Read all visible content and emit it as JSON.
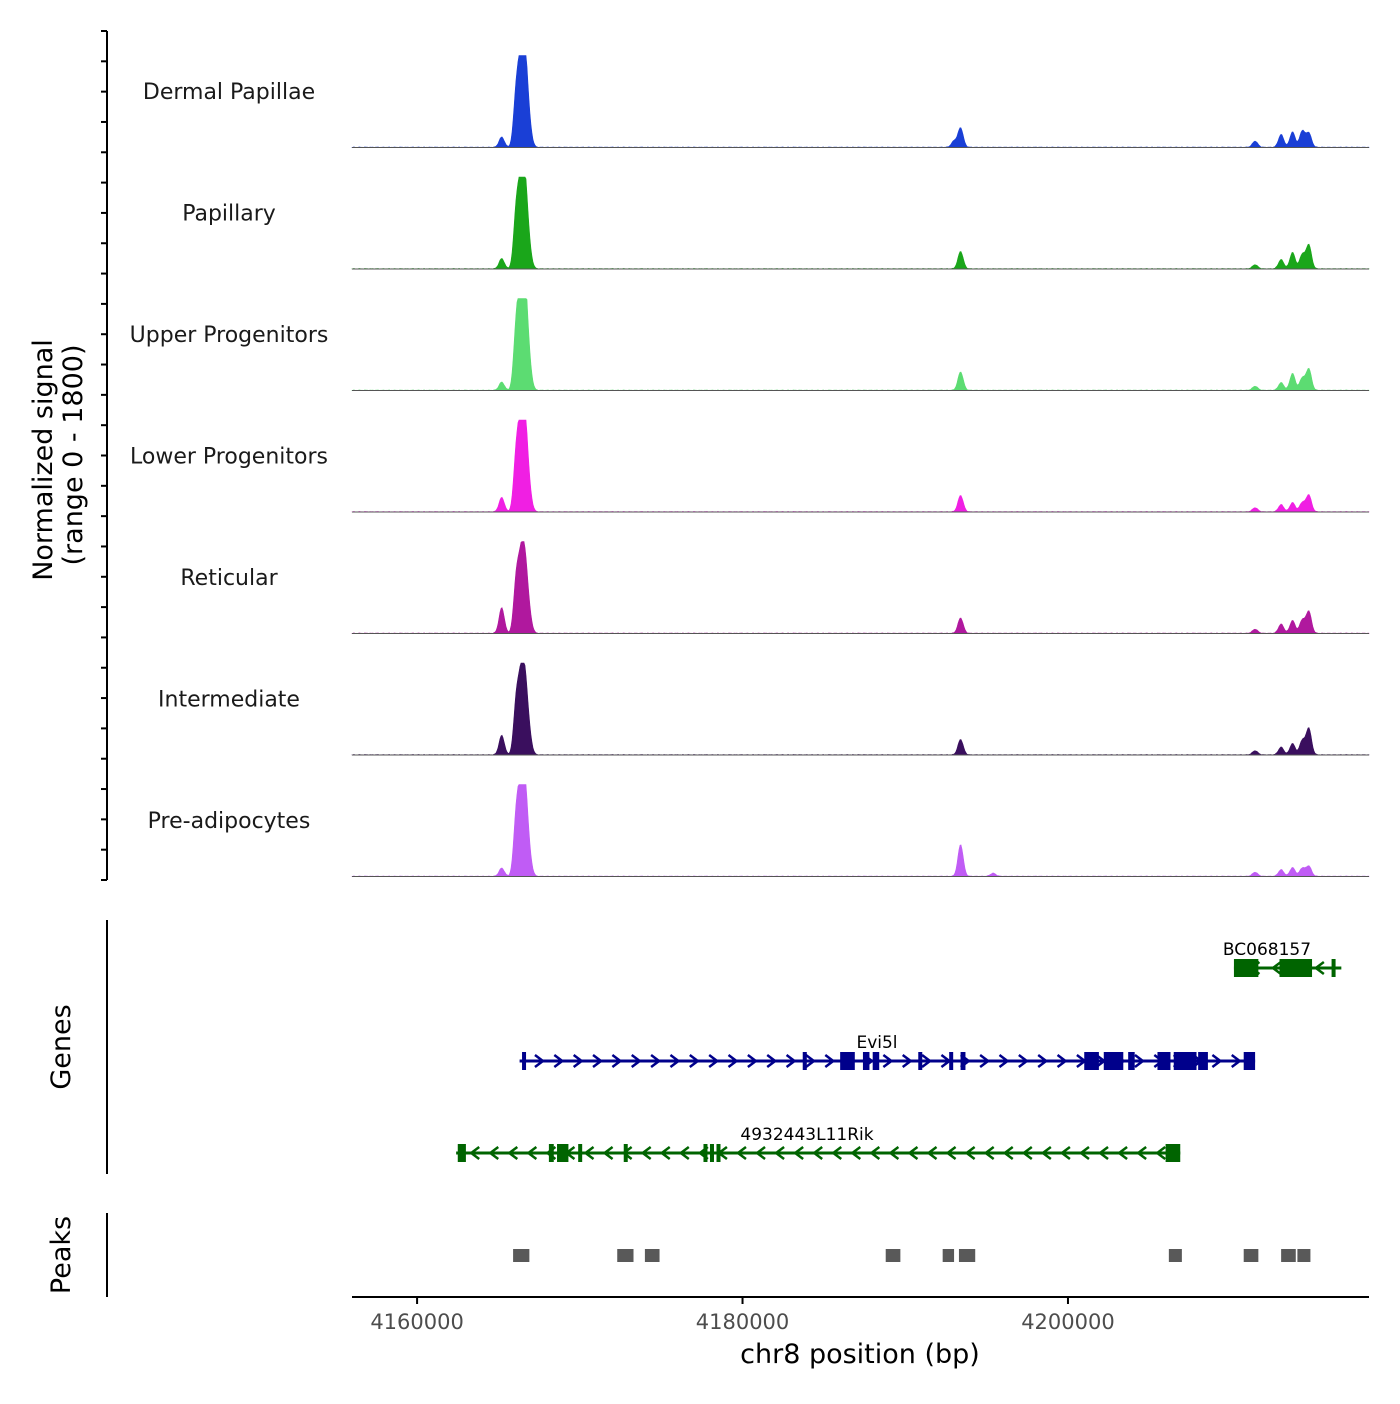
{
  "chart_data": {
    "type": "area",
    "title": "",
    "xlabel": "chr8 position (bp)",
    "ylabel_signal": "Normalized signal",
    "ylabel_signal_range": "(range 0 - 1800)",
    "ylim": [
      0,
      1800
    ],
    "xlim": [
      4156000,
      4218500
    ],
    "x_ticks": [
      4160000,
      4180000,
      4200000
    ],
    "x_tick_labels": [
      "4160000",
      "4180000",
      "4200000"
    ],
    "panel_labels": {
      "genes": "Genes",
      "peaks": "Peaks"
    },
    "tracks": [
      {
        "name": "Dermal Papillae",
        "color": "#1a3fd6",
        "peaks": [
          [
            4165200,
            200
          ],
          [
            4166100,
            1100
          ],
          [
            4166400,
            1550
          ],
          [
            4166650,
            1480
          ],
          [
            4166900,
            350
          ],
          [
            4193000,
            120
          ],
          [
            4193400,
            380
          ],
          [
            4211500,
            120
          ],
          [
            4213100,
            250
          ],
          [
            4213800,
            300
          ],
          [
            4214400,
            320
          ],
          [
            4214800,
            280
          ]
        ]
      },
      {
        "name": "Papillary",
        "color": "#1aa61a",
        "peaks": [
          [
            4165200,
            200
          ],
          [
            4166100,
            1150
          ],
          [
            4166400,
            1480
          ],
          [
            4166650,
            1380
          ],
          [
            4166900,
            300
          ],
          [
            4193400,
            340
          ],
          [
            4211500,
            80
          ],
          [
            4213100,
            180
          ],
          [
            4213800,
            320
          ],
          [
            4214400,
            280
          ],
          [
            4214800,
            470
          ]
        ]
      },
      {
        "name": "Upper Progenitors",
        "color": "#5cdc72",
        "peaks": [
          [
            4165200,
            160
          ],
          [
            4166100,
            1250
          ],
          [
            4166400,
            1800
          ],
          [
            4166650,
            1650
          ],
          [
            4166900,
            400
          ],
          [
            4193400,
            360
          ],
          [
            4211500,
            80
          ],
          [
            4213100,
            150
          ],
          [
            4213800,
            330
          ],
          [
            4214400,
            240
          ],
          [
            4214800,
            420
          ]
        ]
      },
      {
        "name": "Lower Progenitors",
        "color": "#f01fe3",
        "peaks": [
          [
            4165200,
            280
          ],
          [
            4166100,
            1150
          ],
          [
            4166400,
            1600
          ],
          [
            4166650,
            1450
          ],
          [
            4166900,
            330
          ],
          [
            4193400,
            320
          ],
          [
            4211500,
            80
          ],
          [
            4213100,
            140
          ],
          [
            4213800,
            180
          ],
          [
            4214400,
            180
          ],
          [
            4214800,
            330
          ]
        ]
      },
      {
        "name": "Reticular",
        "color": "#b0189e",
        "peaks": [
          [
            4165200,
            500
          ],
          [
            4166100,
            1050
          ],
          [
            4166400,
            1250
          ],
          [
            4166650,
            1150
          ],
          [
            4166900,
            300
          ],
          [
            4193400,
            300
          ],
          [
            4211500,
            80
          ],
          [
            4213100,
            180
          ],
          [
            4213800,
            250
          ],
          [
            4214400,
            260
          ],
          [
            4214800,
            430
          ]
        ]
      },
      {
        "name": "Intermediate",
        "color": "#3a0f5e",
        "peaks": [
          [
            4165200,
            380
          ],
          [
            4166100,
            1050
          ],
          [
            4166400,
            1300
          ],
          [
            4166650,
            1200
          ],
          [
            4166900,
            320
          ],
          [
            4193400,
            300
          ],
          [
            4211500,
            80
          ],
          [
            4213100,
            150
          ],
          [
            4213800,
            220
          ],
          [
            4214400,
            280
          ],
          [
            4214800,
            520
          ]
        ]
      },
      {
        "name": "Pre-adipocytes",
        "color": "#c05cf5",
        "peaks": [
          [
            4165200,
            160
          ],
          [
            4166100,
            1200
          ],
          [
            4166400,
            1550
          ],
          [
            4166650,
            1420
          ],
          [
            4166900,
            330
          ],
          [
            4193400,
            620
          ],
          [
            4195400,
            60
          ],
          [
            4211500,
            80
          ],
          [
            4213100,
            130
          ],
          [
            4213800,
            170
          ],
          [
            4214400,
            160
          ],
          [
            4214800,
            200
          ]
        ]
      }
    ],
    "genes": [
      {
        "name": "BC068157",
        "strand": "-",
        "color": "#006400",
        "start": 4210200,
        "end": 4216800,
        "row": 0,
        "exons": [
          [
            4210200,
            4211700
          ],
          [
            4213000,
            4215000
          ],
          [
            4216200,
            4216400
          ]
        ]
      },
      {
        "name": "Evi5l",
        "strand": "+",
        "color": "#00008b",
        "start": 4166300,
        "end": 4211500,
        "row": 1,
        "exons": [
          [
            4166450,
            4166650
          ],
          [
            4183700,
            4183950
          ],
          [
            4186000,
            4186900
          ],
          [
            4187400,
            4187800
          ],
          [
            4188000,
            4188400
          ],
          [
            4190800,
            4191000
          ],
          [
            4192700,
            4192900
          ],
          [
            4193400,
            4193700
          ],
          [
            4201000,
            4201900
          ],
          [
            4202200,
            4203400
          ],
          [
            4203700,
            4204100
          ],
          [
            4205500,
            4206300
          ],
          [
            4206500,
            4207900
          ],
          [
            4208000,
            4208600
          ],
          [
            4210800,
            4211500
          ]
        ]
      },
      {
        "name": "4932443L11Rik",
        "strand": "-",
        "color": "#006400",
        "start": 4162400,
        "end": 4206900,
        "row": 2,
        "exons": [
          [
            4162500,
            4163000
          ],
          [
            4168100,
            4168400
          ],
          [
            4168600,
            4169300
          ],
          [
            4169900,
            4170000
          ],
          [
            4172700,
            4172800
          ],
          [
            4177600,
            4177700
          ],
          [
            4178000,
            4178150
          ],
          [
            4178400,
            4178500
          ],
          [
            4206000,
            4206900
          ]
        ]
      }
    ],
    "peaks_regions": [
      [
        4165900,
        4166900
      ],
      [
        4172300,
        4173300
      ],
      [
        4174000,
        4174900
      ],
      [
        4188800,
        4189700
      ],
      [
        4192300,
        4193000
      ],
      [
        4193300,
        4194300
      ],
      [
        4206200,
        4207000
      ],
      [
        4210800,
        4211700
      ],
      [
        4213100,
        4214000
      ],
      [
        4214100,
        4214900
      ]
    ]
  }
}
